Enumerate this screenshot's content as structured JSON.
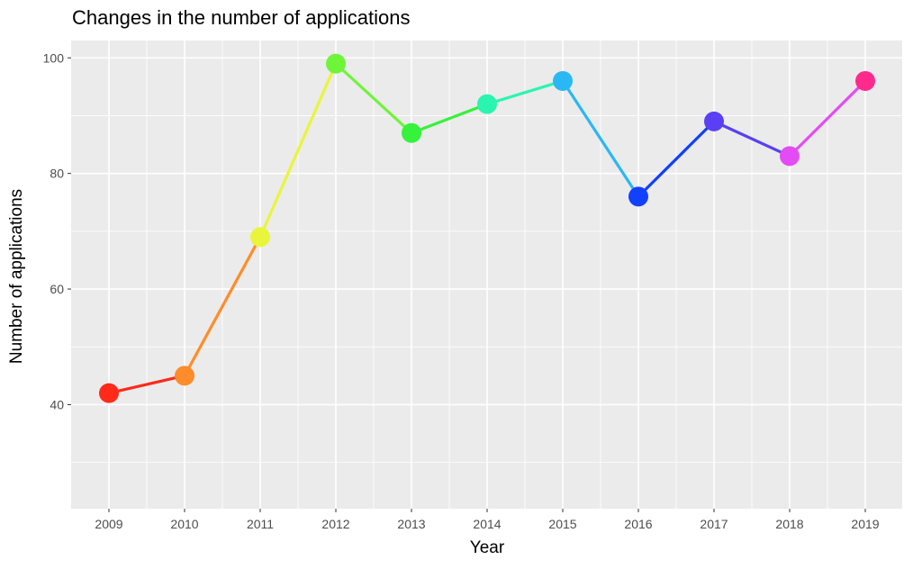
{
  "chart_data": {
    "type": "line",
    "title": "Changes in the number of applications",
    "xlabel": "Year",
    "ylabel": "Number of applications",
    "x": [
      "2009",
      "2010",
      "2011",
      "2012",
      "2013",
      "2014",
      "2015",
      "2016",
      "2017",
      "2018",
      "2019"
    ],
    "values": [
      42,
      45,
      69,
      99,
      87,
      92,
      96,
      76,
      89,
      83,
      96
    ],
    "yticks": [
      "40",
      "60",
      "80",
      "100"
    ],
    "ylim": [
      22,
      103
    ],
    "grid": true,
    "legend": "none",
    "colors": [
      "#ff2a1a",
      "#ff8c2a",
      "#e9f53a",
      "#6ef53a",
      "#35f23a",
      "#2af5b0",
      "#2ab8f5",
      "#1240ff",
      "#5a3ff5",
      "#e34cf5",
      "#ff2a8c"
    ]
  }
}
